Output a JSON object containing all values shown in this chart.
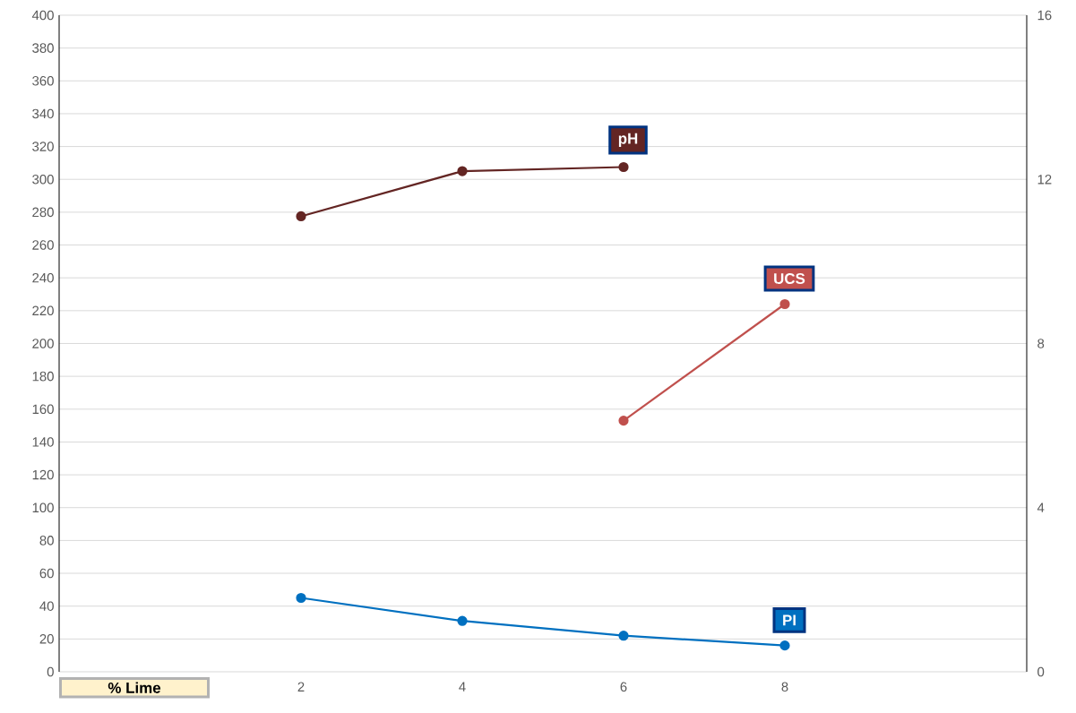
{
  "chart_data": {
    "type": "line",
    "xlabel": "% Lime",
    "x": [
      2,
      4,
      6,
      8
    ],
    "series": [
      {
        "name": "pH",
        "color": "#632523",
        "values": [
          11.1,
          12.2,
          12.3,
          null
        ],
        "axis": "y2"
      },
      {
        "name": "UCS",
        "color": "#c0504d",
        "values": [
          null,
          null,
          153,
          224
        ]
      },
      {
        "name": "PI",
        "color": "#0070c0",
        "values": [
          45,
          31,
          22,
          16
        ]
      }
    ],
    "xlim": [
      -1,
      11
    ],
    "xticks": [
      2,
      4,
      6,
      8
    ],
    "ylim": [
      0,
      400
    ],
    "yticks": [
      0,
      20,
      40,
      60,
      80,
      100,
      120,
      140,
      160,
      180,
      200,
      220,
      240,
      260,
      280,
      300,
      320,
      340,
      360,
      380,
      400
    ],
    "y2lim": [
      0,
      16
    ],
    "y2ticks": [
      0,
      4,
      8,
      12,
      16
    ],
    "grid": "y",
    "marker": "circle",
    "line_style": "solid"
  }
}
